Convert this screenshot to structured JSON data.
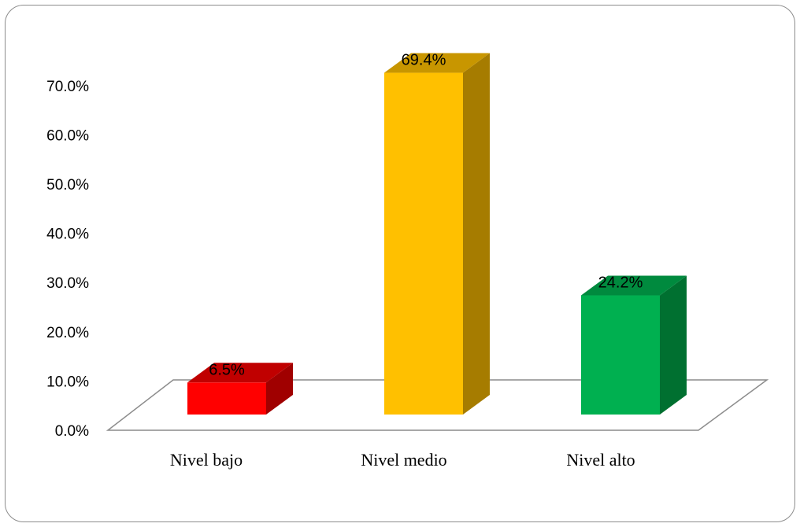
{
  "chart_data": {
    "type": "bar",
    "categories": [
      "Nivel bajo",
      "Nivel medio",
      "Nivel alto"
    ],
    "values": [
      6.5,
      69.4,
      24.2
    ],
    "value_labels": [
      "6.5%",
      "69.4%",
      "24.2%"
    ],
    "yticks": [
      "0.0%",
      "10.0%",
      "20.0%",
      "30.0%",
      "40.0%",
      "50.0%",
      "60.0%",
      "70.0%"
    ],
    "ylim": [
      0,
      70
    ],
    "grid": false,
    "three_d": true,
    "colors": {
      "front": [
        "#ff0000",
        "#ffc000",
        "#00b050"
      ],
      "side": [
        "#a00000",
        "#a67c00",
        "#007030"
      ],
      "top": [
        "#c00000",
        "#c89600",
        "#008a3e"
      ]
    }
  }
}
